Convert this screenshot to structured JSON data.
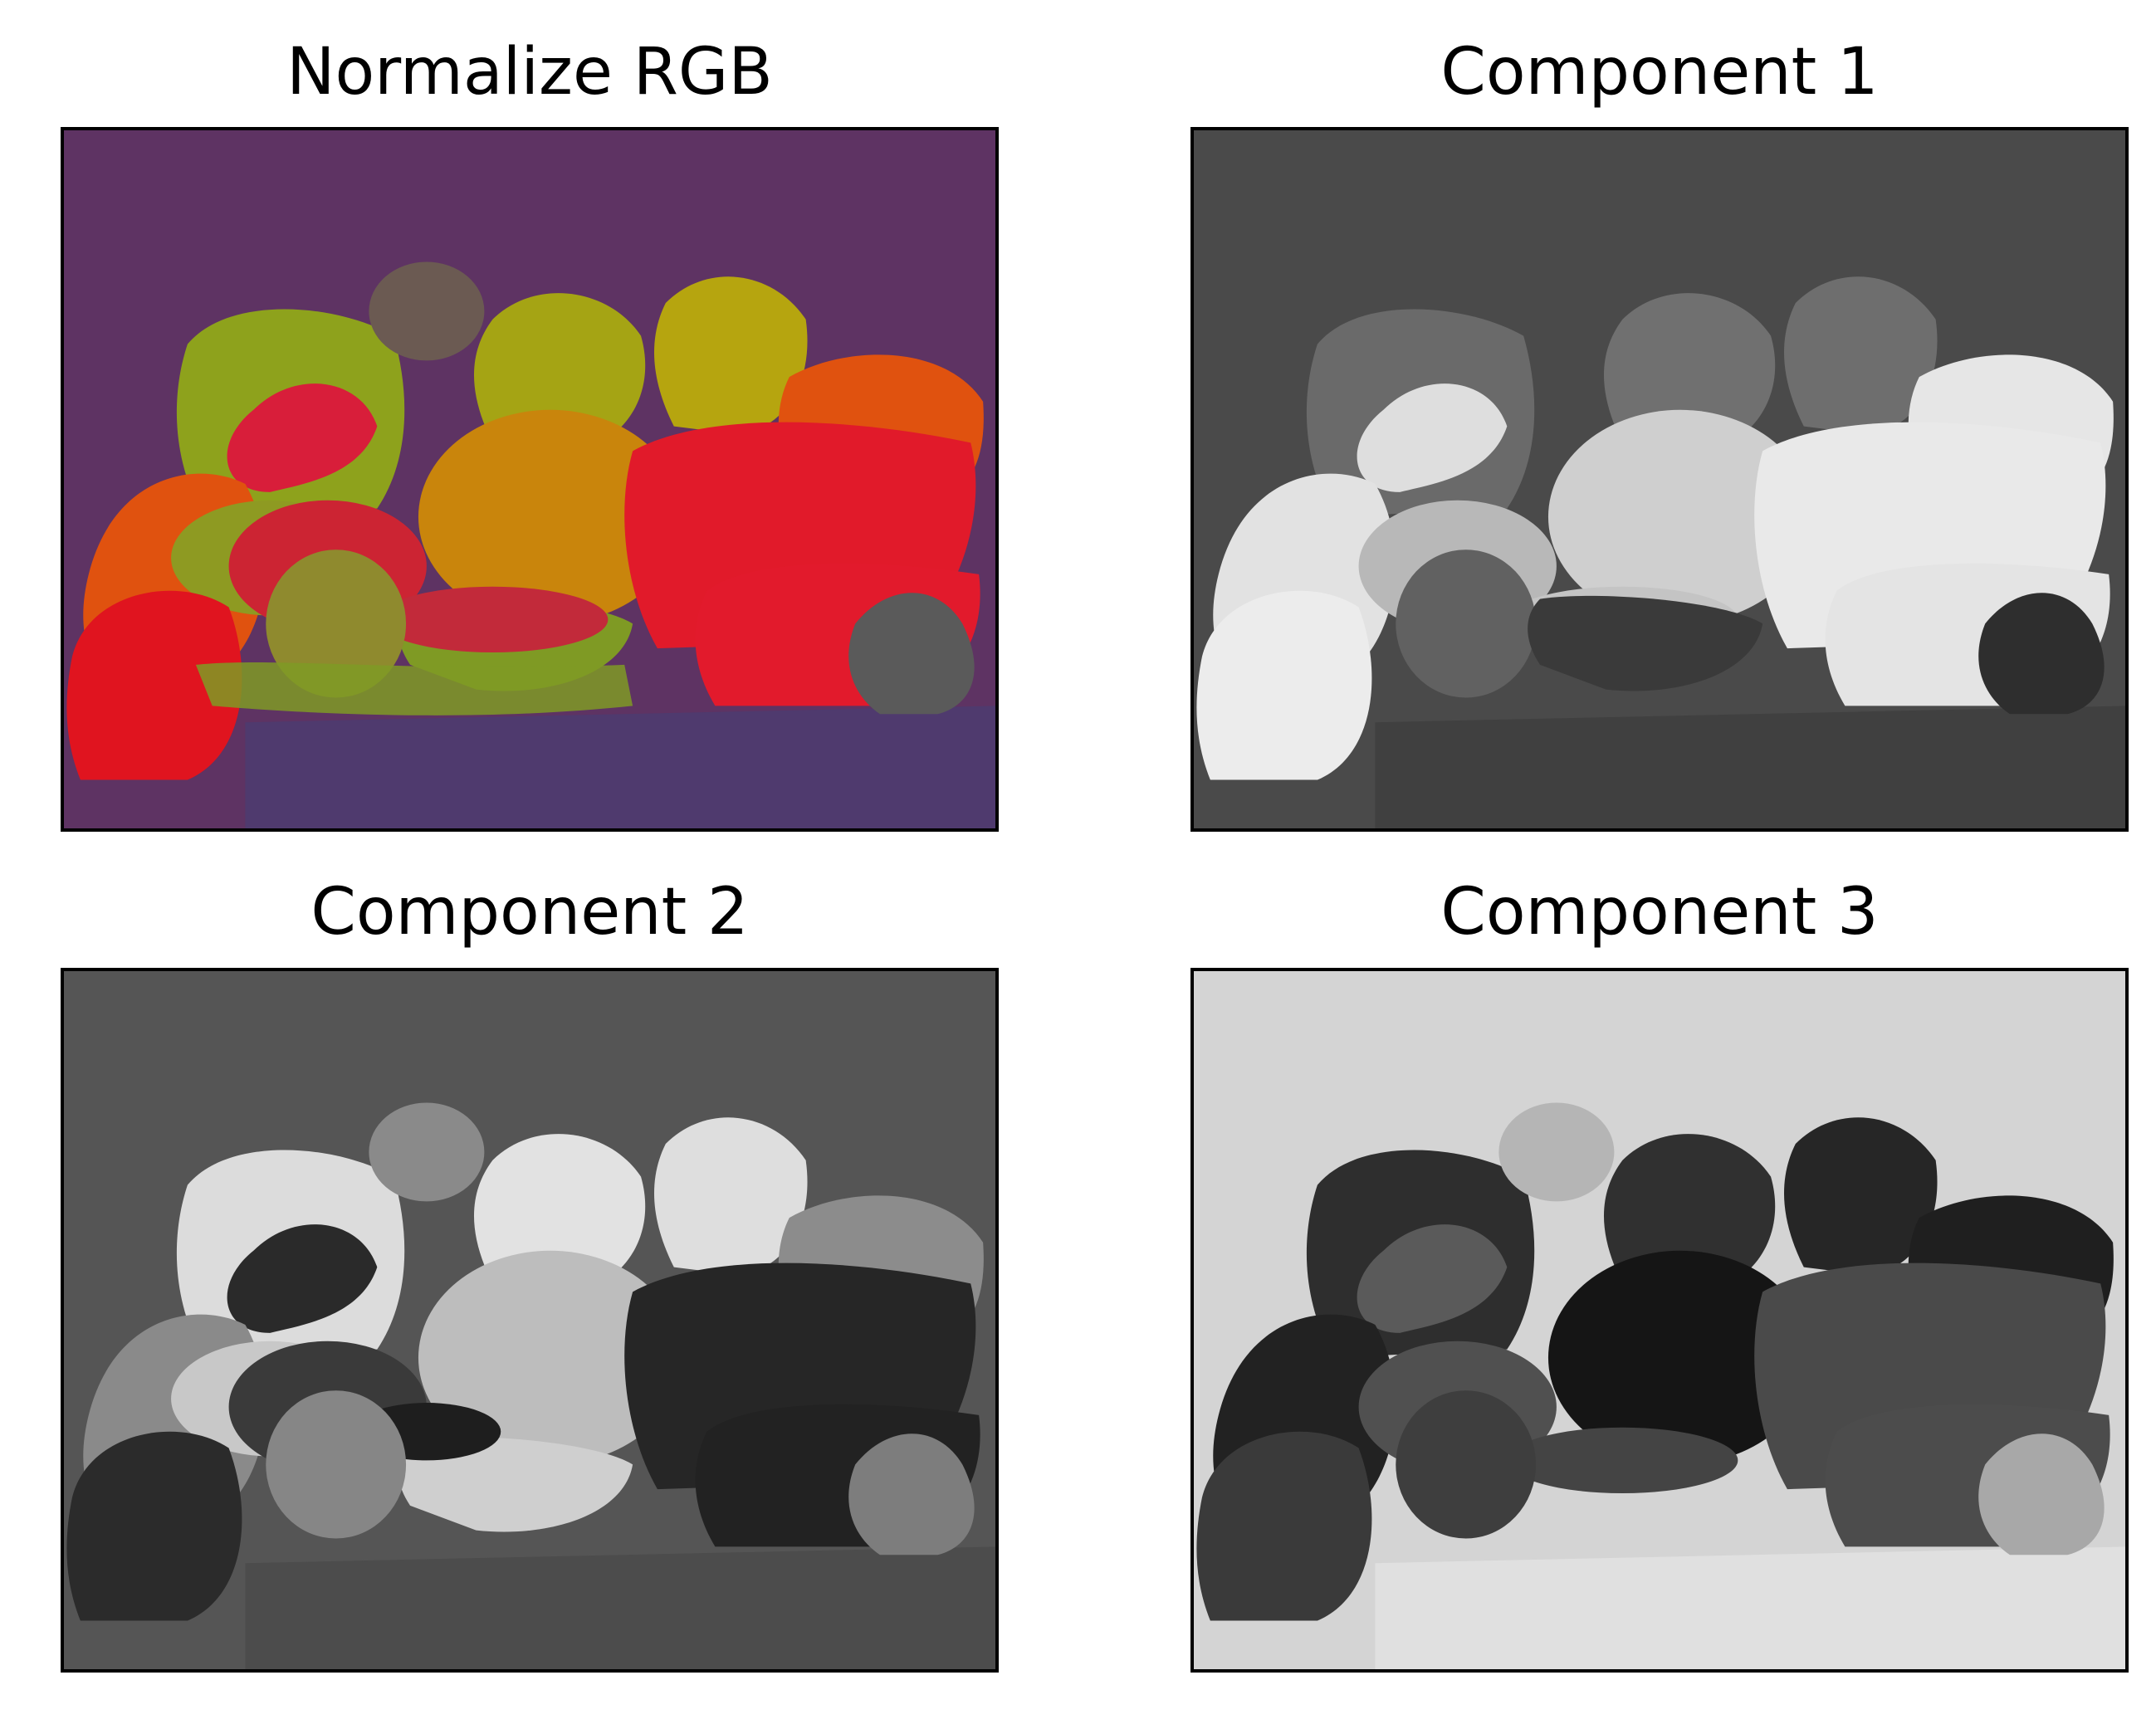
{
  "panels": [
    {
      "title": "Normalize RGB",
      "kind": "normalized-rgb-peppers"
    },
    {
      "title": "Component 1",
      "kind": "grayscale-component"
    },
    {
      "title": "Component 2",
      "kind": "grayscale-component"
    },
    {
      "title": "Component 3",
      "kind": "grayscale-component"
    }
  ],
  "colors": {
    "rgb_background": "#5e3363",
    "rgb_table": "#4f3a6e",
    "pepper_red": "#e11a2a",
    "pepper_green": "#8ea21c",
    "pepper_yellow": "#b6a50f",
    "pepper_orange": "#e0520f",
    "c1_background": "#4a4a4a",
    "c2_background": "#555555",
    "c3_background": "#d4d4d4"
  }
}
